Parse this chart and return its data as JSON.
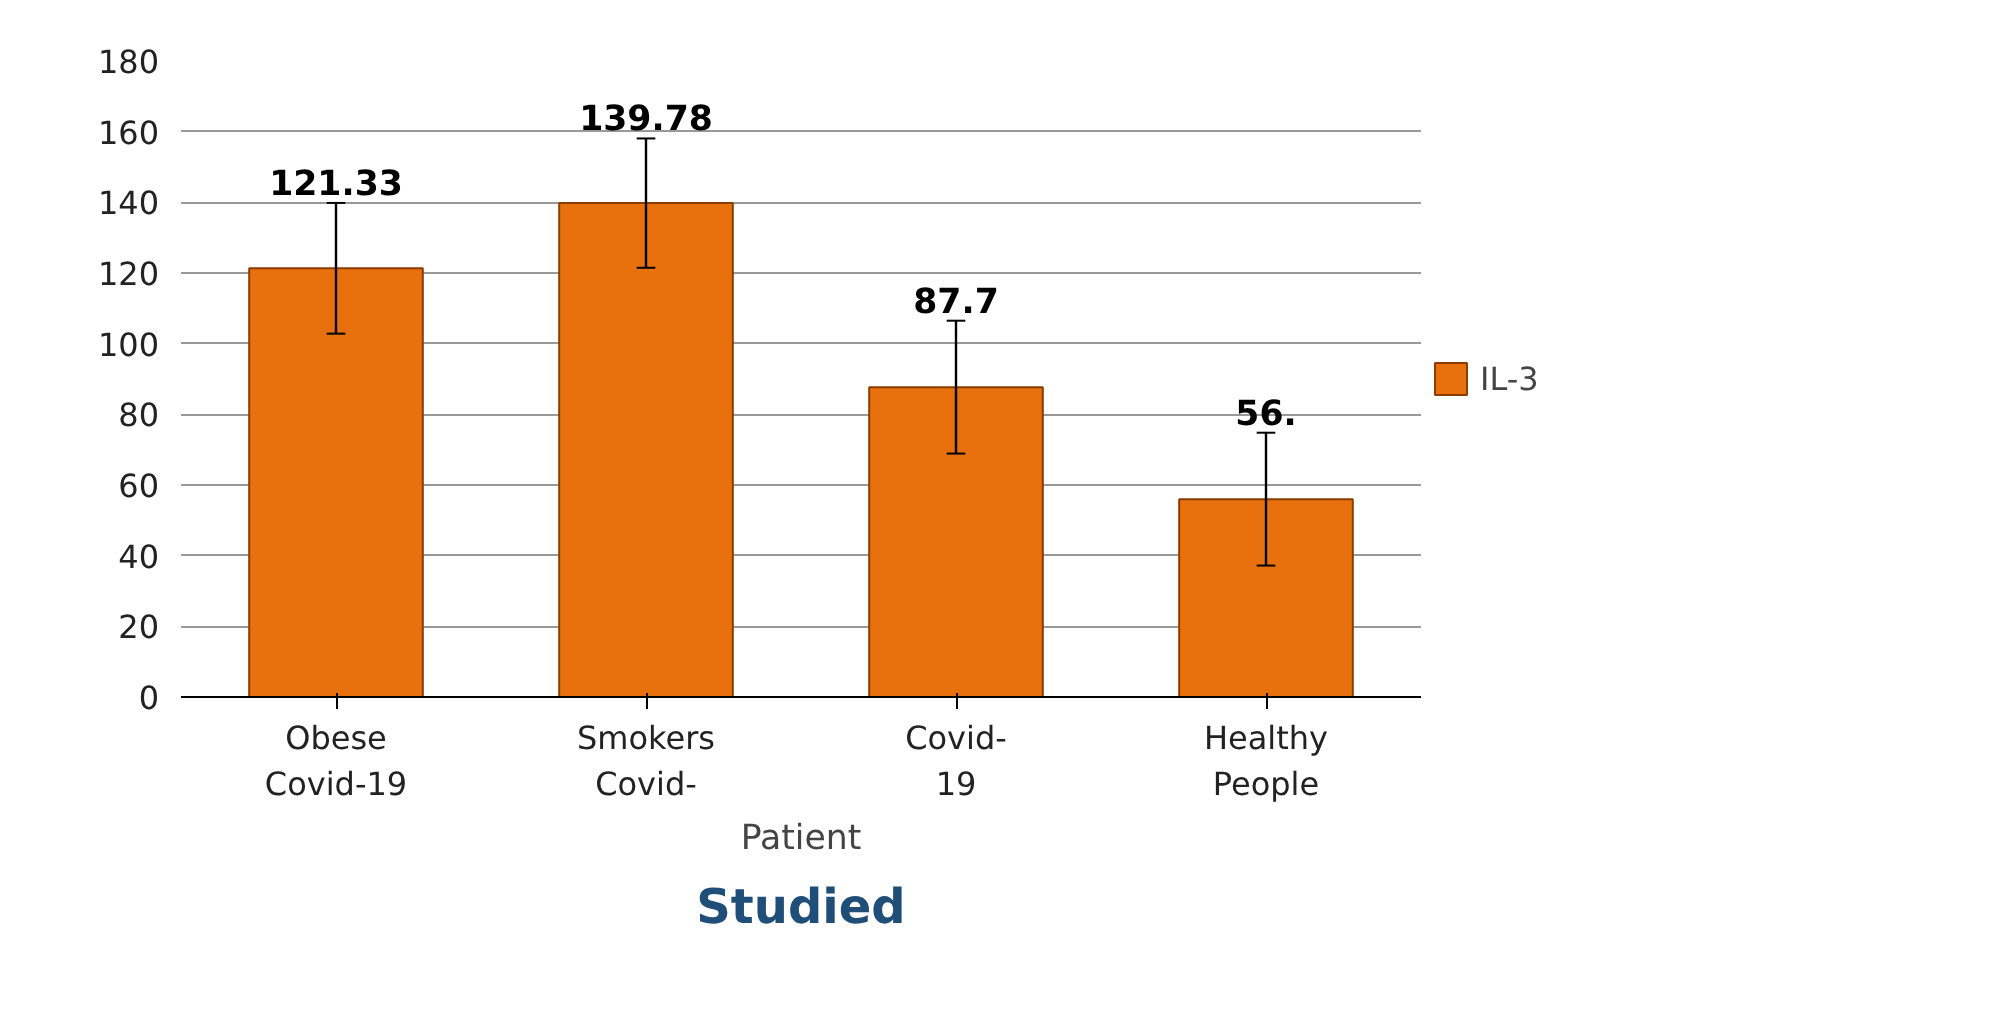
{
  "chart_data": {
    "type": "bar",
    "title": "Studied",
    "xlabel": "Patient",
    "categories": [
      "Obese\nCovid-19",
      "Smokers\nCovid-",
      "Covid-\n19",
      "Healthy\nPeople"
    ],
    "series": [
      {
        "name": "IL-3",
        "color": "#e8710e",
        "values": [
          121.33,
          139.78,
          87.7,
          56
        ],
        "errors": [
          18.5,
          18.3,
          18.8,
          18.8
        ],
        "value_labels": [
          "121.33",
          "139.78",
          "87.7",
          "56."
        ]
      }
    ],
    "ylim": [
      0,
      180
    ],
    "yticks": [
      0,
      20,
      40,
      60,
      80,
      100,
      120,
      140,
      160,
      180
    ],
    "grid": "y",
    "legend": "right"
  }
}
